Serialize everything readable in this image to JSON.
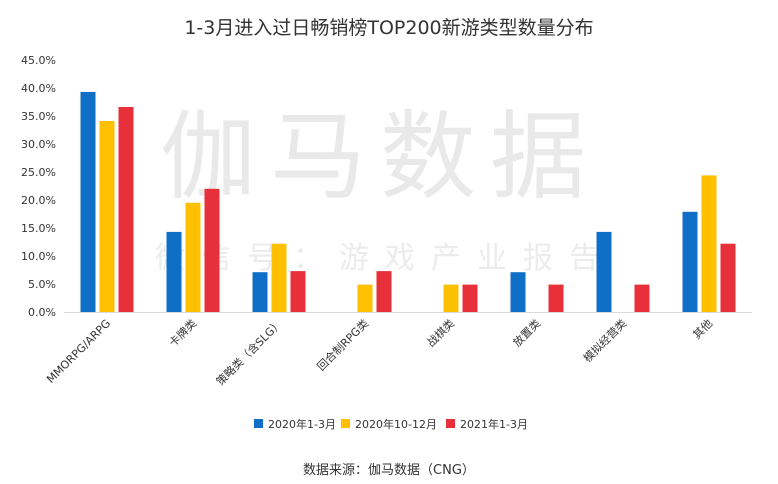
{
  "chart_data": {
    "type": "bar",
    "title": "1-3月进入过日畅销榜TOP200新游类型数量分布",
    "categories": [
      "MMORPG/ARPG",
      "卡牌类",
      "策略类（含SLG）",
      "回合制RPG类",
      "战棋类",
      "放置类",
      "模拟经营类",
      "其他"
    ],
    "series": [
      {
        "name": "2020年1-3月",
        "color": "#0f6fc6",
        "values": [
          39.3,
          14.3,
          7.1,
          0,
          0,
          7.1,
          14.3,
          17.9
        ]
      },
      {
        "name": "2020年10-12月",
        "color": "#ffc000",
        "values": [
          34.1,
          19.5,
          12.2,
          4.9,
          4.9,
          0,
          0,
          24.4
        ]
      },
      {
        "name": "2021年1-3月",
        "color": "#e8303a",
        "values": [
          36.6,
          22.0,
          7.3,
          7.3,
          4.9,
          4.9,
          4.9,
          12.2
        ]
      }
    ],
    "y_ticks": [
      "0.0%",
      "5.0%",
      "10.0%",
      "15.0%",
      "20.0%",
      "25.0%",
      "30.0%",
      "35.0%",
      "40.0%",
      "45.0%"
    ],
    "ylim": [
      0,
      45
    ],
    "grid": false,
    "legend_position": "bottom"
  },
  "watermark": {
    "main": "伽马数据",
    "sub": "微信号：游戏产业报告"
  },
  "source": "数据来源：伽马数据（CNG）"
}
